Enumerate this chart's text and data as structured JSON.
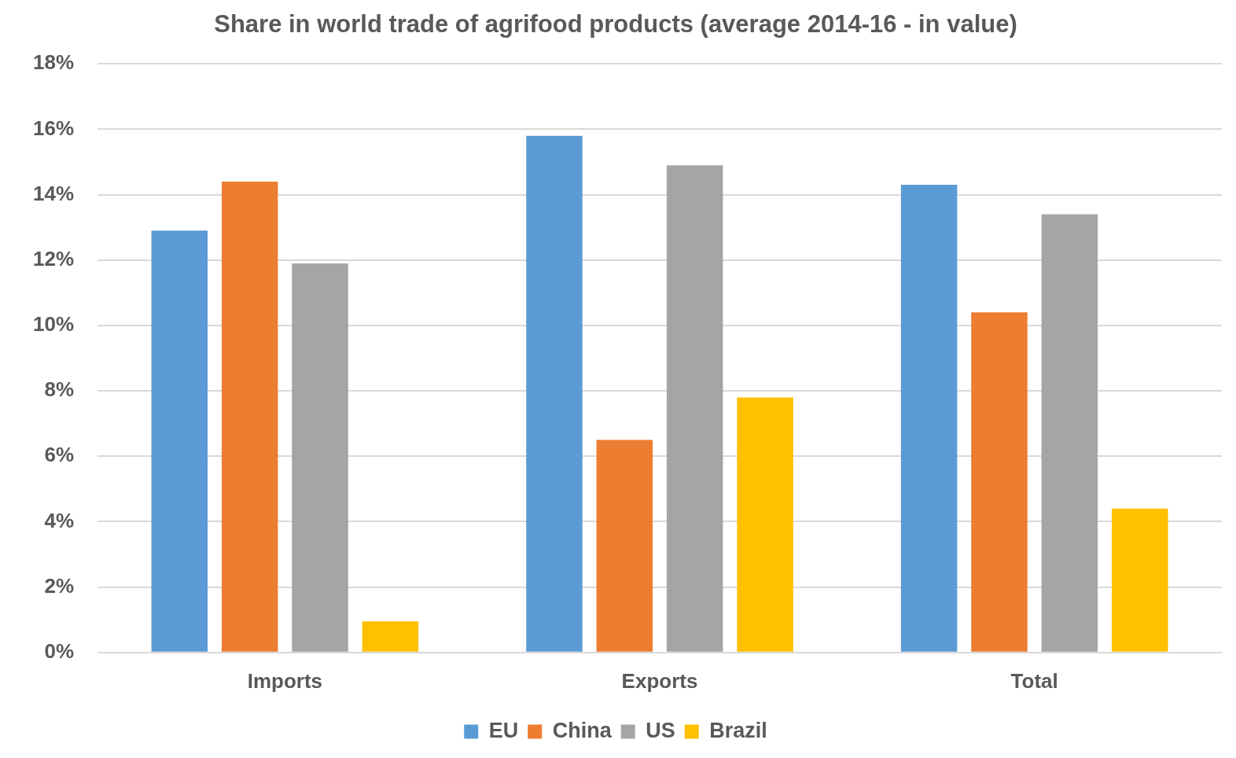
{
  "chart_data": {
    "type": "bar",
    "title": "Share in world trade of agrifood products (average 2014-16 - in value)",
    "categories": [
      "Imports",
      "Exports",
      "Total"
    ],
    "series": [
      {
        "name": "EU",
        "color": "#5b9bd5",
        "values": [
          12.9,
          15.8,
          14.3
        ]
      },
      {
        "name": "China",
        "color": "#ed7d31",
        "values": [
          14.4,
          6.5,
          10.4
        ]
      },
      {
        "name": "US",
        "color": "#a5a5a5",
        "values": [
          11.9,
          14.9,
          13.4
        ]
      },
      {
        "name": "Brazil",
        "color": "#ffc000",
        "values": [
          0.95,
          7.8,
          4.4
        ]
      }
    ],
    "ylim": [
      0,
      18
    ],
    "yticks": [
      {
        "value": 0,
        "label": "0%"
      },
      {
        "value": 2,
        "label": "2%"
      },
      {
        "value": 4,
        "label": "4%"
      },
      {
        "value": 6,
        "label": "6%"
      },
      {
        "value": 8,
        "label": "8%"
      },
      {
        "value": 10,
        "label": "10%"
      },
      {
        "value": 12,
        "label": "12%"
      },
      {
        "value": 14,
        "label": "14%"
      },
      {
        "value": 16,
        "label": "16%"
      },
      {
        "value": 18,
        "label": "18%"
      }
    ],
    "grid": "y",
    "legend": "bottom"
  }
}
